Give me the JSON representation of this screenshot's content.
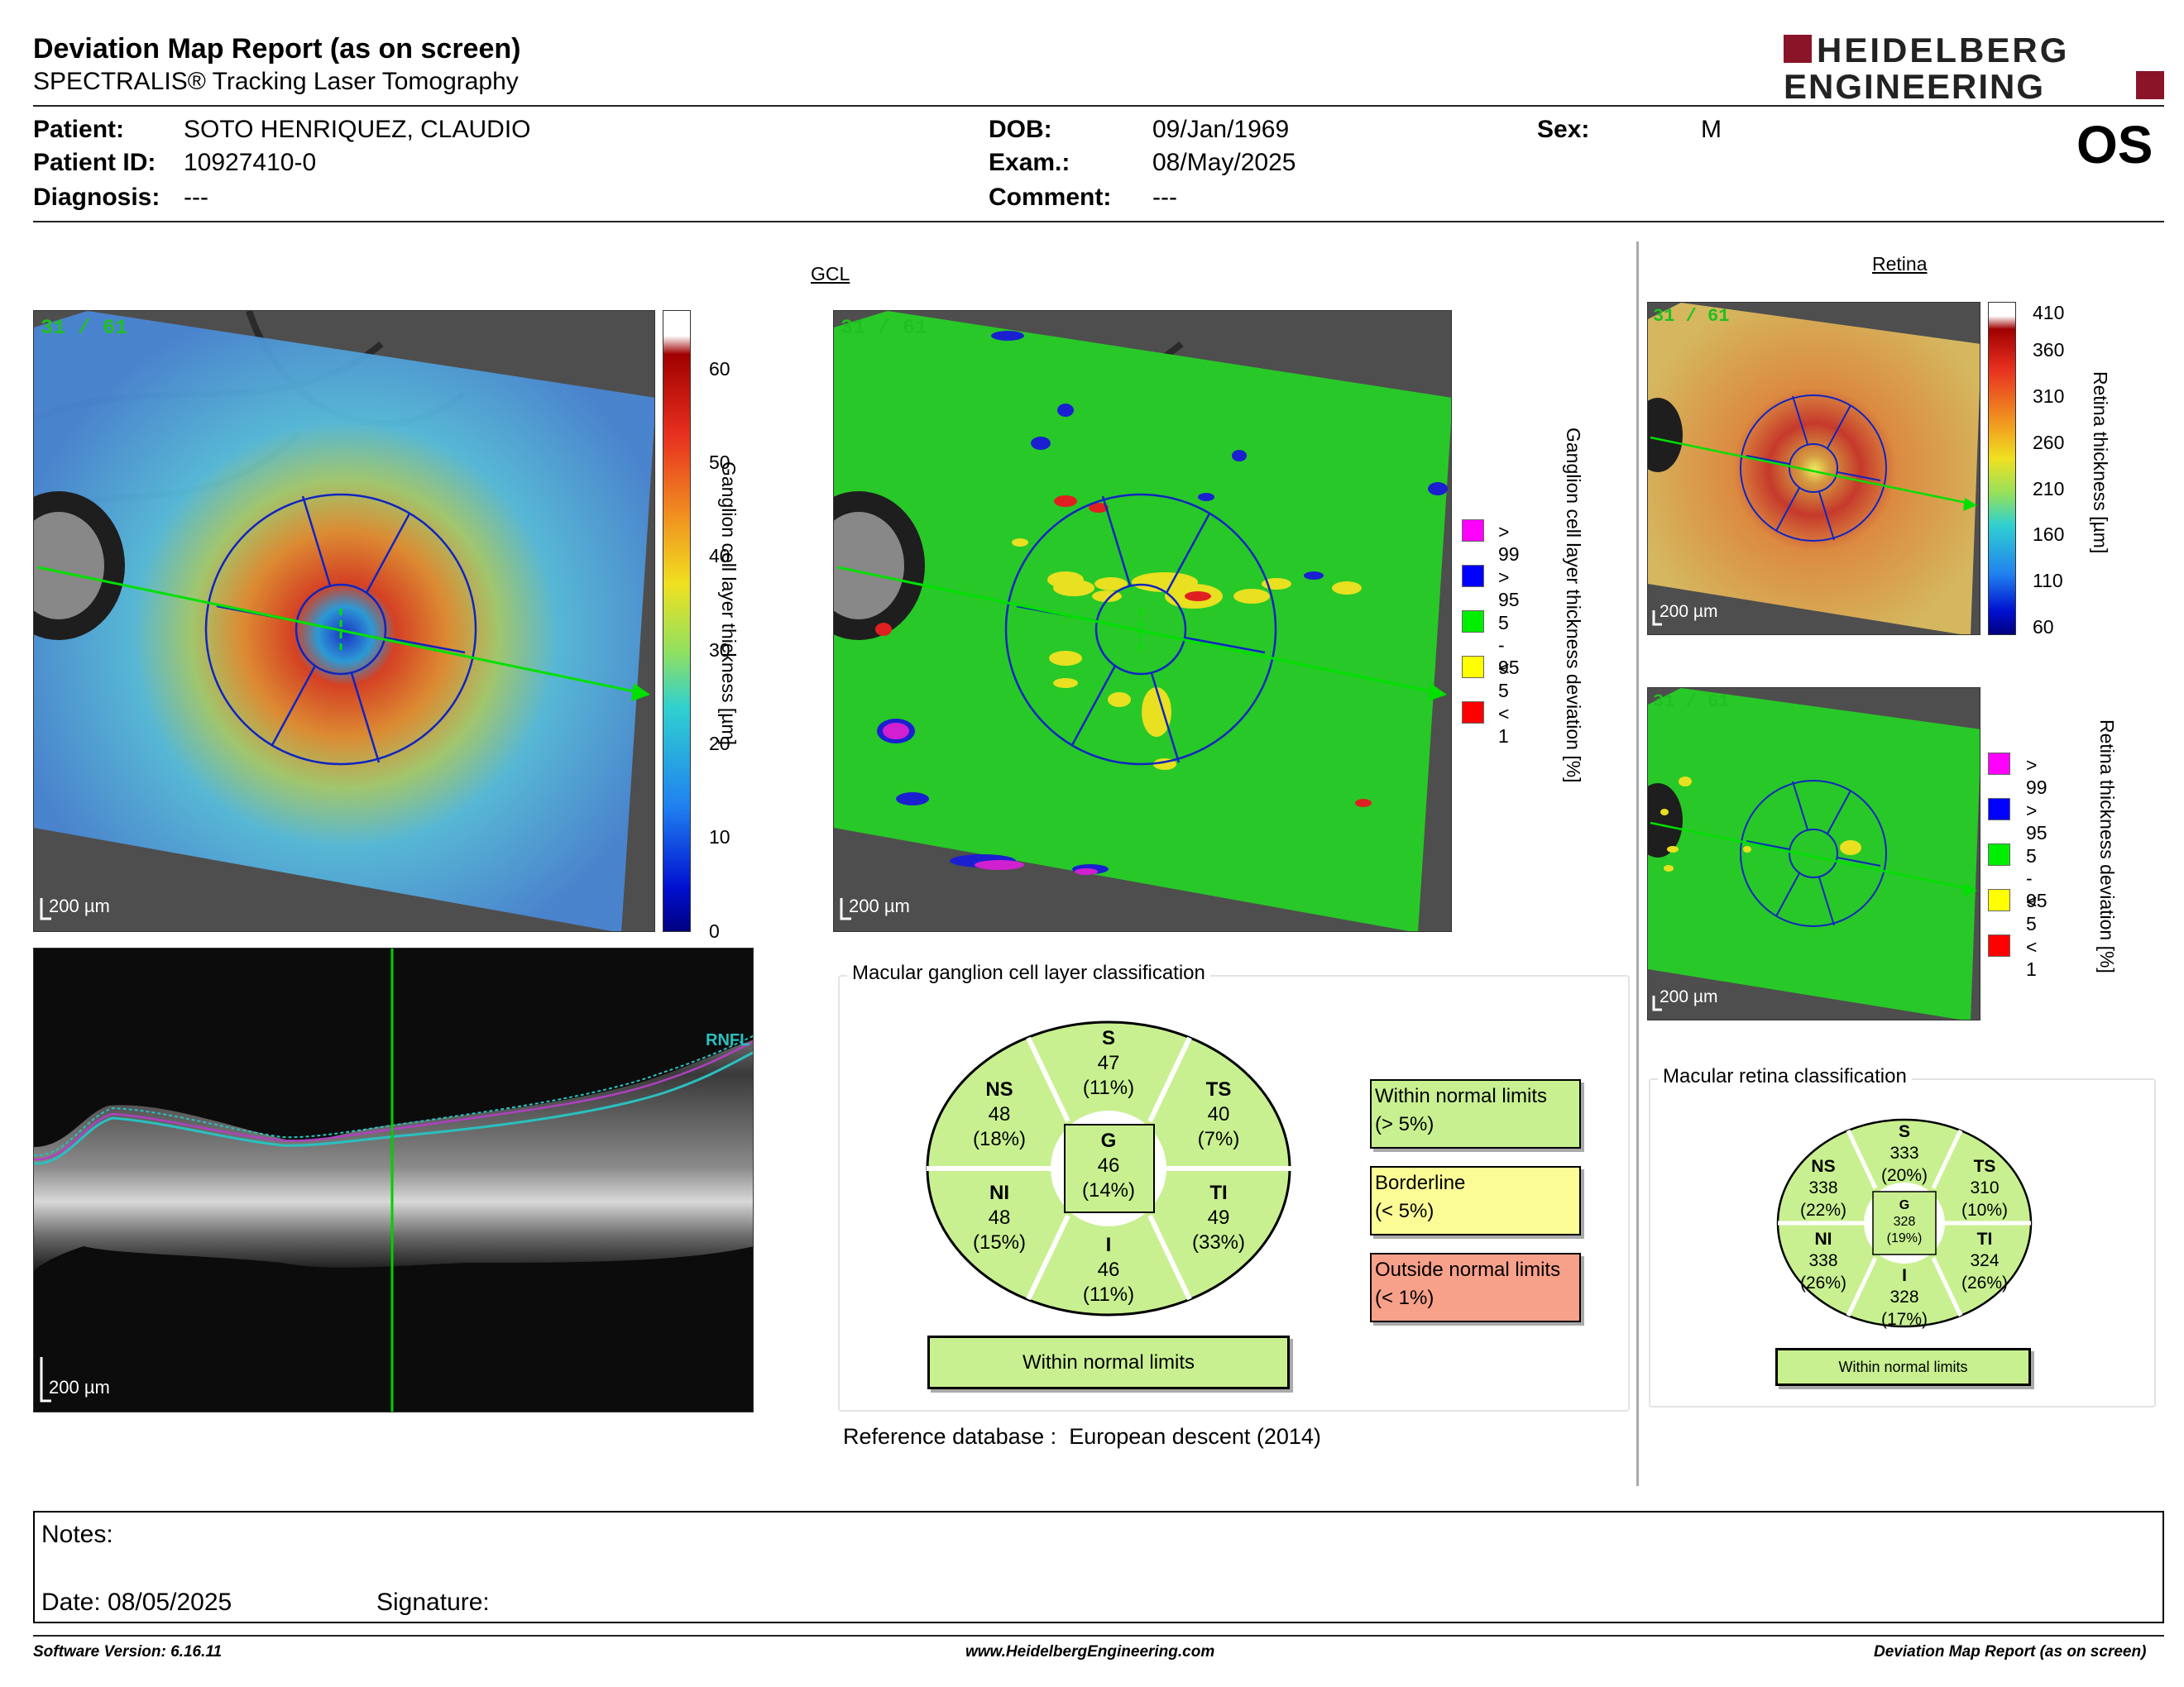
{
  "header": {
    "title": "Deviation Map Report (as on screen)",
    "subtitle": "SPECTRALIS® Tracking Laser Tomography",
    "logo_line1": "HEIDELBERG",
    "logo_line2": "ENGINEERING",
    "eye": "OS"
  },
  "patient": {
    "name_label": "Patient:",
    "name": "SOTO HENRIQUEZ, CLAUDIO",
    "id_label": "Patient ID:",
    "id": "10927410-0",
    "diagnosis_label": "Diagnosis:",
    "diagnosis": "---",
    "dob_label": "DOB:",
    "dob": "09/Jan/1969",
    "exam_label": "Exam.:",
    "exam": "08/May/2025",
    "comment_label": "Comment:",
    "comment": "---",
    "sex_label": "Sex:",
    "sex": "M"
  },
  "gcl": {
    "section_label": "GCL",
    "scan_badge": "31 / 61",
    "scale_label": "200 µm",
    "thickness_axis_label": "Ganglion cell layer thickness [µm]",
    "thickness_ticks": [
      "60",
      "50",
      "40",
      "30",
      "20",
      "10",
      "0"
    ],
    "deviation_axis_label": "Ganglion cell layer thickness deviation [%]",
    "deviation_legend": [
      {
        "label": "> 99",
        "color": "#ff00ff"
      },
      {
        "label": "> 95",
        "color": "#0000ff"
      },
      {
        "label": "5 - 95",
        "color": "#00ee00"
      },
      {
        "label": "< 5",
        "color": "#ffff00"
      },
      {
        "label": "< 1",
        "color": "#ff0000"
      }
    ]
  },
  "bscan": {
    "layer_label": "RNFL",
    "scale_label": "200 µm"
  },
  "gcl_classification": {
    "title": "Macular ganglion cell layer classification",
    "sectors": {
      "S": {
        "name": "S",
        "value": "47",
        "pct": "(11%)"
      },
      "NS": {
        "name": "NS",
        "value": "48",
        "pct": "(18%)"
      },
      "TS": {
        "name": "TS",
        "value": "40",
        "pct": "(7%)"
      },
      "G": {
        "name": "G",
        "value": "46",
        "pct": "(14%)"
      },
      "NI": {
        "name": "NI",
        "value": "48",
        "pct": "(15%)"
      },
      "TI": {
        "name": "TI",
        "value": "49",
        "pct": "(33%)"
      },
      "I": {
        "name": "I",
        "value": "46",
        "pct": "(11%)"
      }
    },
    "result": "Within normal limits",
    "legend": [
      {
        "line1": "Within normal limits",
        "line2": "(> 5%)"
      },
      {
        "line1": "Borderline",
        "line2": "(< 5%)"
      },
      {
        "line1": "Outside normal limits",
        "line2": "(< 1%)"
      }
    ]
  },
  "reference": {
    "label": "Reference database :",
    "value": "European descent (2014)"
  },
  "retina": {
    "section_label": "Retina",
    "scan_badge": "31 / 61",
    "scale_label": "200 µm",
    "thickness_axis_label": "Retina thickness [µm]",
    "thickness_ticks": [
      "410",
      "360",
      "310",
      "260",
      "210",
      "160",
      "110",
      "60"
    ],
    "deviation_axis_label": "Retina thickness deviation [%]",
    "deviation_legend": [
      {
        "label": "> 99",
        "color": "#ff00ff"
      },
      {
        "label": "> 95",
        "color": "#0000ff"
      },
      {
        "label": "5 - 95",
        "color": "#00ee00"
      },
      {
        "label": "< 5",
        "color": "#ffff00"
      },
      {
        "label": "< 1",
        "color": "#ff0000"
      }
    ]
  },
  "retina_classification": {
    "title": "Macular retina classification",
    "sectors": {
      "S": {
        "name": "S",
        "value": "333",
        "pct": "(20%)"
      },
      "NS": {
        "name": "NS",
        "value": "338",
        "pct": "(22%)"
      },
      "TS": {
        "name": "TS",
        "value": "310",
        "pct": "(10%)"
      },
      "G": {
        "name": "G",
        "value": "328",
        "pct": "(19%)"
      },
      "NI": {
        "name": "NI",
        "value": "338",
        "pct": "(26%)"
      },
      "TI": {
        "name": "TI",
        "value": "324",
        "pct": "(26%)"
      },
      "I": {
        "name": "I",
        "value": "328",
        "pct": "(17%)"
      }
    },
    "result": "Within normal limits"
  },
  "notes": {
    "label": "Notes:",
    "date": "Date: 08/05/2025",
    "signature": "Signature:"
  },
  "footer": {
    "software": "Software Version: 6.16.11",
    "website": "www.HeidelbergEngineering.com",
    "report": "Deviation Map Report (as on screen)"
  }
}
